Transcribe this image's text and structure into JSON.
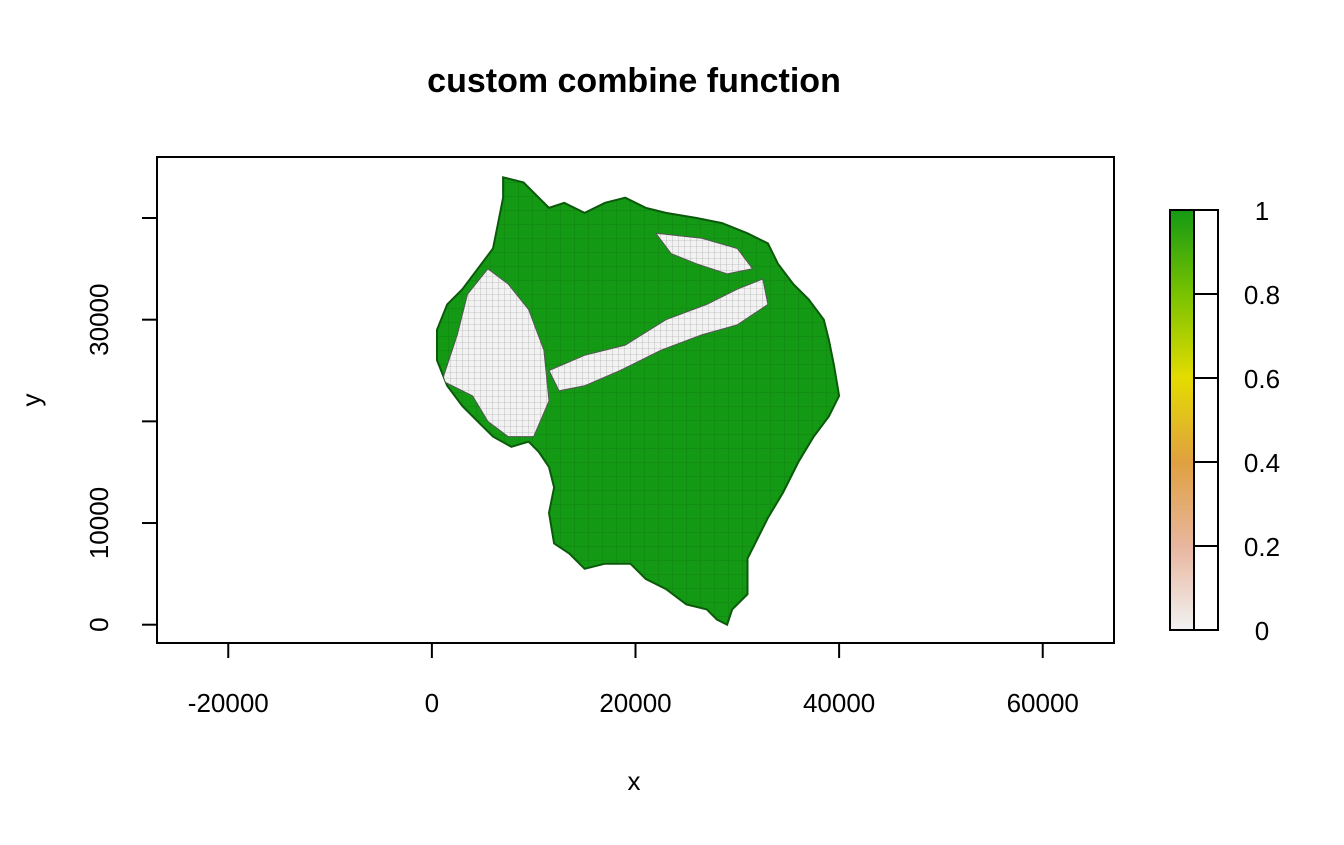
{
  "chart_data": {
    "type": "heatmap",
    "title": "custom combine function",
    "xlabel": "x",
    "ylabel": "y",
    "xlim": [
      -27000,
      67000
    ],
    "ylim": [
      -1800,
      46000
    ],
    "x_ticks": [
      -20000,
      0,
      20000,
      40000,
      60000
    ],
    "x_tick_labels": [
      "-20000",
      "0",
      "20000",
      "40000",
      "60000"
    ],
    "y_ticks": [
      0,
      10000,
      20000,
      30000,
      40000
    ],
    "y_tick_labels": [
      "0",
      "10000",
      "",
      "30000",
      ""
    ],
    "grid": false,
    "legend": {
      "position": "right",
      "min": 0,
      "max": 1,
      "ticks": [
        0,
        0.2,
        0.4,
        0.6,
        0.8,
        1
      ],
      "tick_labels": [
        "0",
        "0.2",
        "0.4",
        "0.6",
        "0.8",
        "1"
      ],
      "colors": [
        "#f2f2f2",
        "#e8b69e",
        "#e0a040",
        "#e4dc00",
        "#78c200",
        "#149914"
      ]
    },
    "value_colors": {
      "low": "#f2f2f2",
      "high": "#149914"
    },
    "region_outline": [
      [
        7000,
        44000
      ],
      [
        9000,
        43500
      ],
      [
        10500,
        42000
      ],
      [
        11500,
        41000
      ],
      [
        13000,
        41500
      ],
      [
        15000,
        40500
      ],
      [
        17000,
        41500
      ],
      [
        19000,
        42000
      ],
      [
        21000,
        41000
      ],
      [
        23000,
        40500
      ],
      [
        26000,
        40000
      ],
      [
        28500,
        39500
      ],
      [
        31000,
        38500
      ],
      [
        33000,
        37500
      ],
      [
        34000,
        35500
      ],
      [
        35500,
        33500
      ],
      [
        37000,
        32000
      ],
      [
        38500,
        30000
      ],
      [
        39000,
        28000
      ],
      [
        39500,
        25500
      ],
      [
        40000,
        22500
      ],
      [
        39000,
        20500
      ],
      [
        37500,
        18500
      ],
      [
        36000,
        16000
      ],
      [
        34500,
        13000
      ],
      [
        33000,
        10500
      ],
      [
        32000,
        8500
      ],
      [
        31000,
        6500
      ],
      [
        31000,
        3000
      ],
      [
        29500,
        1500
      ],
      [
        29000,
        0
      ],
      [
        28000,
        500
      ],
      [
        27000,
        1500
      ],
      [
        25000,
        2000
      ],
      [
        23000,
        3500
      ],
      [
        21000,
        4500
      ],
      [
        19500,
        6000
      ],
      [
        17000,
        6000
      ],
      [
        15000,
        5500
      ],
      [
        13500,
        7000
      ],
      [
        12000,
        8000
      ],
      [
        11500,
        11000
      ],
      [
        12000,
        13500
      ],
      [
        11500,
        15500
      ],
      [
        10500,
        17000
      ],
      [
        9500,
        18000
      ],
      [
        7800,
        17500
      ],
      [
        6000,
        18500
      ],
      [
        4500,
        20000
      ],
      [
        3000,
        21500
      ],
      [
        1500,
        23500
      ],
      [
        500,
        26000
      ],
      [
        500,
        29000
      ],
      [
        1500,
        31500
      ],
      [
        3000,
        33000
      ],
      [
        4500,
        35000
      ],
      [
        6000,
        37000
      ],
      [
        6500,
        39500
      ],
      [
        7000,
        42000
      ]
    ],
    "low_value_patches": [
      [
        [
          1000,
          24000
        ],
        [
          2500,
          28500
        ],
        [
          3500,
          32500
        ],
        [
          5500,
          35000
        ],
        [
          7500,
          33500
        ],
        [
          9500,
          31000
        ],
        [
          11000,
          27000
        ],
        [
          11500,
          22000
        ],
        [
          10000,
          18500
        ],
        [
          7500,
          18500
        ],
        [
          5500,
          20000
        ],
        [
          4000,
          22500
        ]
      ],
      [
        [
          11500,
          25000
        ],
        [
          15000,
          26500
        ],
        [
          19000,
          27500
        ],
        [
          23000,
          30000
        ],
        [
          27000,
          31500
        ],
        [
          30000,
          33000
        ],
        [
          32500,
          34000
        ],
        [
          33000,
          31500
        ],
        [
          30000,
          29500
        ],
        [
          26500,
          28500
        ],
        [
          22500,
          27000
        ],
        [
          18500,
          25000
        ],
        [
          15000,
          23500
        ],
        [
          12500,
          23000
        ]
      ],
      [
        [
          22000,
          38500
        ],
        [
          26500,
          38000
        ],
        [
          30000,
          37000
        ],
        [
          31500,
          35000
        ],
        [
          29000,
          34500
        ],
        [
          26000,
          35500
        ],
        [
          23500,
          36500
        ]
      ]
    ]
  }
}
